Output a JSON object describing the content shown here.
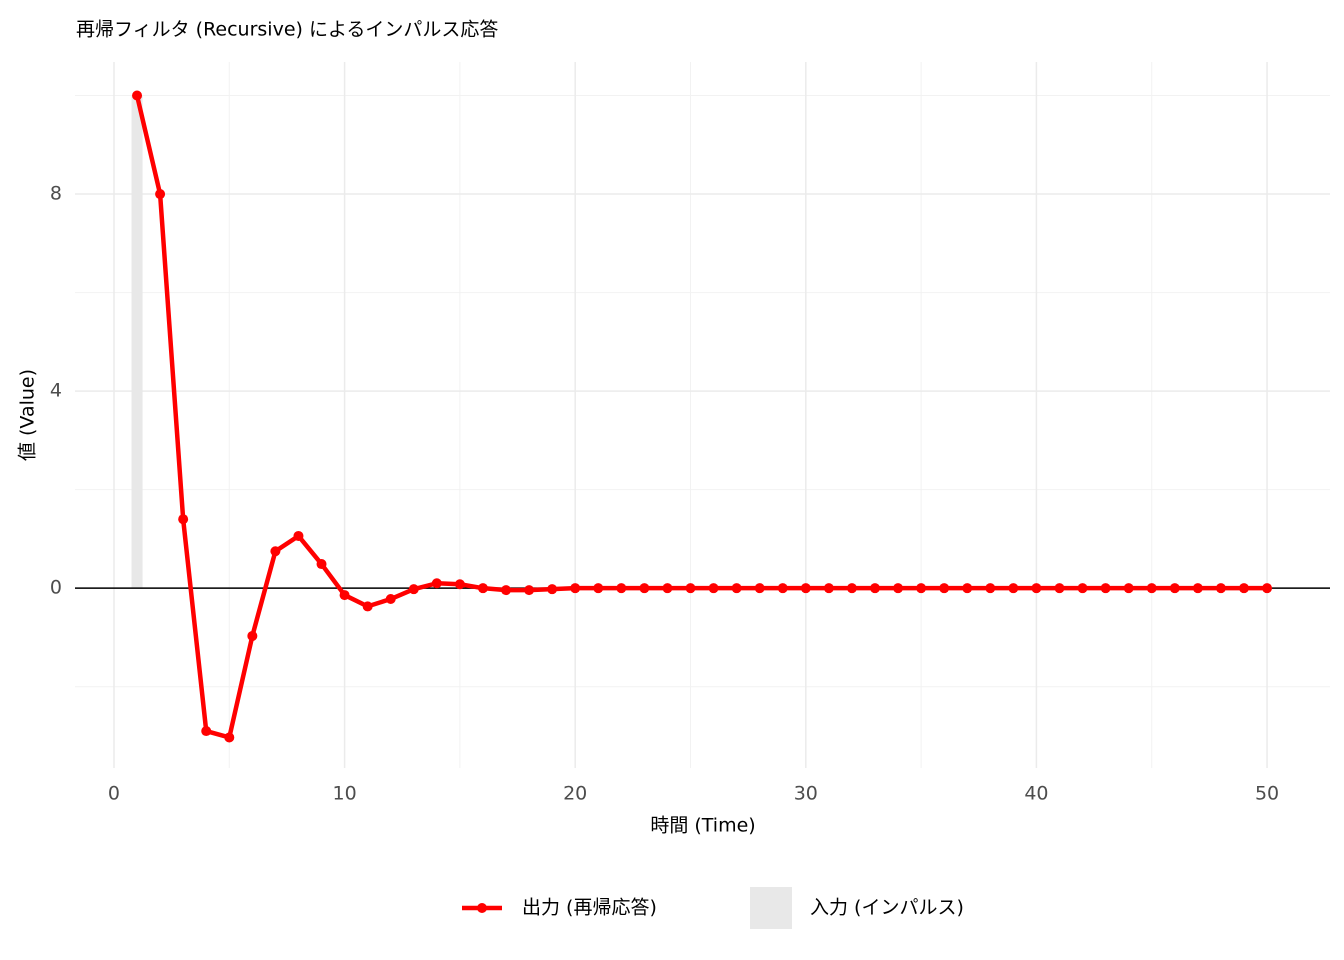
{
  "chart_data": {
    "type": "line",
    "title": "再帰フィルタ (Recursive) によるインパルス応答",
    "x_label": "時間 (Time)",
    "y_label": "値 (Value)",
    "x": [
      1,
      2,
      3,
      4,
      5,
      6,
      7,
      8,
      9,
      10,
      11,
      12,
      13,
      14,
      15,
      16,
      17,
      18,
      19,
      20,
      21,
      22,
      23,
      24,
      25,
      26,
      27,
      28,
      29,
      30,
      31,
      32,
      33,
      34,
      35,
      36,
      37,
      38,
      39,
      40,
      41,
      42,
      43,
      44,
      45,
      46,
      47,
      48,
      49,
      50
    ],
    "series": [
      {
        "name": "入力 (インパルス)",
        "type": "bar",
        "color": "#e8e8e8",
        "values": [
          10,
          0,
          0,
          0,
          0,
          0,
          0,
          0,
          0,
          0,
          0,
          0,
          0,
          0,
          0,
          0,
          0,
          0,
          0,
          0,
          0,
          0,
          0,
          0,
          0,
          0,
          0,
          0,
          0,
          0,
          0,
          0,
          0,
          0,
          0,
          0,
          0,
          0,
          0,
          0,
          0,
          0,
          0,
          0,
          0,
          0,
          0,
          0,
          0,
          0
        ]
      },
      {
        "name": "出力 (再帰応答)",
        "type": "line",
        "color": "#ff0000",
        "values": [
          10,
          8,
          1.4,
          -2.9,
          -3.03,
          -0.97,
          0.75,
          1.06,
          0.49,
          -0.14,
          -0.37,
          -0.22,
          -0.02,
          0.1,
          0.08,
          0,
          -0.04,
          -0.04,
          -0.02,
          0,
          0,
          0,
          0,
          0,
          0,
          0,
          0,
          0,
          0,
          0,
          0,
          0,
          0,
          0,
          0,
          0,
          0,
          0,
          0,
          0,
          0,
          0,
          0,
          0,
          0,
          0,
          0,
          0,
          0,
          0
        ]
      }
    ],
    "xlim": [
      -1.69,
      52.73
    ],
    "ylim": [
      -3.65,
      10.68
    ],
    "xticks": [
      0,
      10,
      20,
      30,
      40,
      50
    ],
    "yticks": [
      0,
      4,
      8
    ],
    "reference_line": 0,
    "grid": true,
    "legend": "bottom"
  }
}
